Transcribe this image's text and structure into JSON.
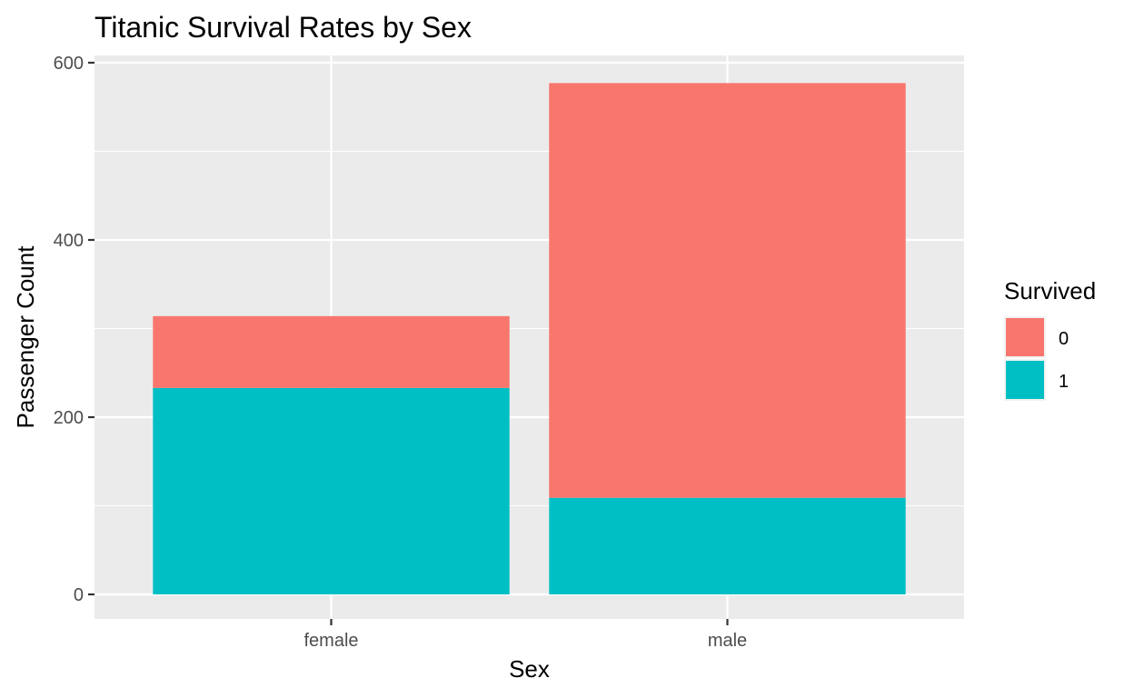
{
  "chart_data": {
    "type": "bar",
    "stacked": true,
    "title": "Titanic Survival Rates by Sex",
    "xlabel": "Sex",
    "ylabel": "Passenger Count",
    "categories": [
      "female",
      "male"
    ],
    "series": [
      {
        "name": "0",
        "values": [
          81,
          468
        ],
        "color": "#F8766D"
      },
      {
        "name": "1",
        "values": [
          233,
          109
        ],
        "color": "#00BFC4"
      }
    ],
    "ylim": [
      -29,
      600
    ],
    "yticks": [
      0,
      200,
      400,
      600
    ],
    "grid": true,
    "panel_background": "#EBEBEB",
    "legend": {
      "title": "Survived",
      "position": "right"
    }
  }
}
